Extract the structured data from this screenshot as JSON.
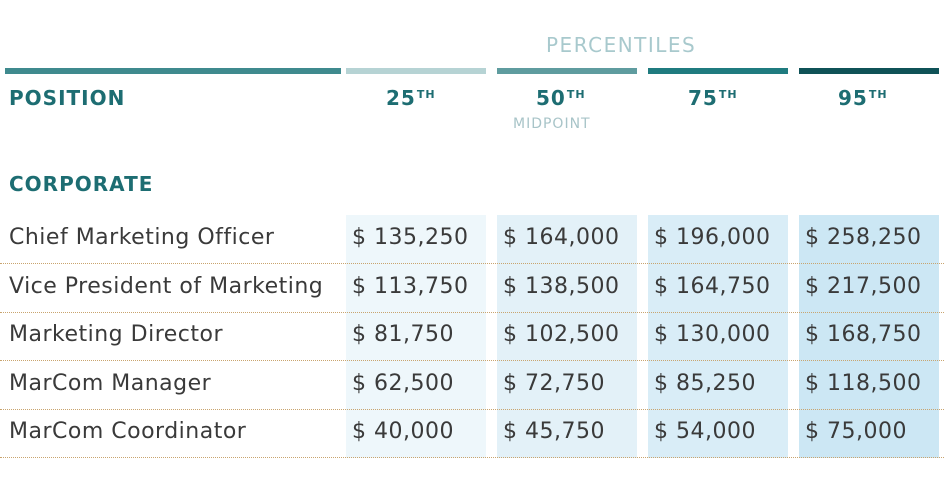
{
  "header": {
    "percentiles_label": "PERCENTILES",
    "position_label": "POSITION",
    "columns": [
      {
        "num": "25",
        "suffix": "TH"
      },
      {
        "num": "50",
        "suffix": "TH",
        "sub": "MIDPOINT"
      },
      {
        "num": "75",
        "suffix": "TH"
      },
      {
        "num": "95",
        "suffix": "TH"
      }
    ]
  },
  "colors": {
    "position_bar": "#3f8a8e",
    "bars": [
      "#b6d3d4",
      "#5f9c9f",
      "#1f7b7f",
      "#0f5257"
    ],
    "column_backgrounds": [
      "#eef7fb",
      "#e3f1f8",
      "#d9edf7",
      "#cce7f4"
    ],
    "heading_text": "#1d6d72"
  },
  "section": "CORPORATE",
  "rows": [
    {
      "position": "Chief Marketing Officer",
      "values": [
        "$ 135,250",
        "$ 164,000",
        "$ 196,000",
        "$ 258,250"
      ]
    },
    {
      "position": "Vice President of Marketing",
      "values": [
        "$ 113,750",
        "$ 138,500",
        "$ 164,750",
        "$ 217,500"
      ]
    },
    {
      "position": "Marketing Director",
      "values": [
        "$ 81,750",
        "$ 102,500",
        "$ 130,000",
        "$ 168,750"
      ]
    },
    {
      "position": "MarCom Manager",
      "values": [
        "$ 62,500",
        "$ 72,750",
        "$ 85,250",
        "$ 118,500"
      ]
    },
    {
      "position": "MarCom Coordinator",
      "values": [
        "$ 40,000",
        "$ 45,750",
        "$ 54,000",
        "$ 75,000"
      ]
    }
  ]
}
